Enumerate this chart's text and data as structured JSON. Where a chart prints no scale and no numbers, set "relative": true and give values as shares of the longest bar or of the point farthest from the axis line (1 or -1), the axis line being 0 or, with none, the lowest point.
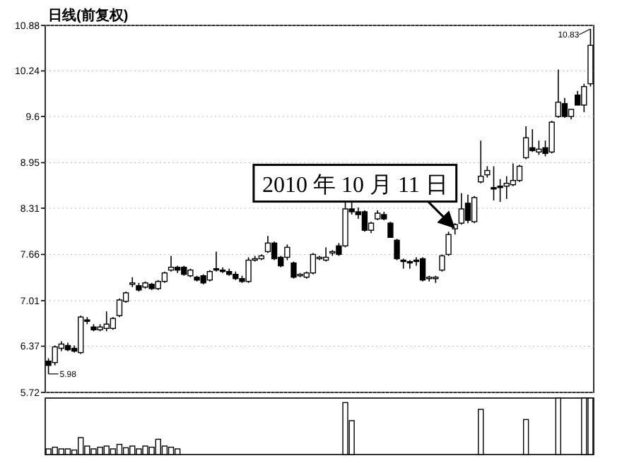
{
  "chart_data": [
    {
      "type": "candlestick",
      "title": "日线(前复权)",
      "categories": [
        null,
        null,
        null,
        null,
        null,
        null,
        null,
        null,
        null,
        null,
        null,
        null,
        null,
        null,
        null,
        null,
        null,
        null,
        null,
        null,
        null,
        null,
        null,
        null,
        null,
        null,
        null,
        null,
        null,
        null,
        null,
        null,
        null,
        null,
        null,
        null,
        null,
        null,
        null,
        null,
        null,
        null,
        null,
        null,
        null,
        null,
        null,
        null,
        null,
        null,
        null,
        null,
        null,
        null,
        null,
        null,
        null,
        null,
        null,
        null,
        null,
        null,
        null,
        null,
        null,
        null,
        null,
        null,
        null,
        null,
        null,
        null,
        null,
        null,
        null,
        null,
        null,
        null,
        null,
        null,
        null,
        null,
        null,
        null,
        null
      ],
      "ohlc": [
        [
          6.16,
          6.2,
          5.98,
          6.1
        ],
        [
          6.14,
          6.38,
          6.1,
          6.36
        ],
        [
          6.34,
          6.44,
          6.3,
          6.4
        ],
        [
          6.38,
          6.42,
          6.3,
          6.32
        ],
        [
          6.34,
          6.38,
          6.28,
          6.3
        ],
        [
          6.28,
          6.8,
          6.26,
          6.78
        ],
        [
          6.74,
          6.78,
          6.68,
          6.72
        ],
        [
          6.64,
          6.68,
          6.58,
          6.6
        ],
        [
          6.6,
          6.68,
          6.58,
          6.64
        ],
        [
          6.62,
          6.86,
          6.58,
          6.68
        ],
        [
          6.62,
          6.78,
          6.6,
          6.76
        ],
        [
          6.8,
          7.04,
          6.78,
          7.02
        ],
        [
          7.0,
          7.14,
          6.98,
          7.12
        ],
        [
          7.24,
          7.34,
          7.2,
          7.26
        ],
        [
          7.22,
          7.26,
          7.14,
          7.16
        ],
        [
          7.2,
          7.28,
          7.18,
          7.26
        ],
        [
          7.24,
          7.26,
          7.16,
          7.18
        ],
        [
          7.18,
          7.3,
          7.16,
          7.28
        ],
        [
          7.28,
          7.42,
          7.26,
          7.4
        ],
        [
          7.44,
          7.64,
          7.42,
          7.48
        ],
        [
          7.48,
          7.5,
          7.4,
          7.44
        ],
        [
          7.48,
          7.5,
          7.36,
          7.38
        ],
        [
          7.36,
          7.46,
          7.34,
          7.44
        ],
        [
          7.34,
          7.36,
          7.28,
          7.3
        ],
        [
          7.36,
          7.38,
          7.24,
          7.26
        ],
        [
          7.3,
          7.44,
          7.28,
          7.42
        ],
        [
          7.46,
          7.7,
          7.42,
          7.44
        ],
        [
          7.44,
          7.48,
          7.4,
          7.42
        ],
        [
          7.42,
          7.46,
          7.36,
          7.38
        ],
        [
          7.38,
          7.42,
          7.3,
          7.32
        ],
        [
          7.32,
          7.36,
          7.26,
          7.28
        ],
        [
          7.28,
          7.62,
          7.26,
          7.58
        ],
        [
          7.58,
          7.64,
          7.56,
          7.6
        ],
        [
          7.6,
          7.66,
          7.58,
          7.64
        ],
        [
          7.7,
          7.92,
          7.68,
          7.82
        ],
        [
          7.82,
          7.84,
          7.58,
          7.6
        ],
        [
          7.62,
          7.64,
          7.48,
          7.5
        ],
        [
          7.62,
          7.8,
          7.58,
          7.76
        ],
        [
          7.54,
          7.56,
          7.32,
          7.34
        ],
        [
          7.36,
          7.4,
          7.34,
          7.38
        ],
        [
          7.34,
          7.42,
          7.32,
          7.4
        ],
        [
          7.4,
          7.68,
          7.38,
          7.66
        ],
        [
          7.6,
          7.64,
          7.58,
          7.62
        ],
        [
          7.58,
          7.76,
          7.56,
          7.62
        ],
        [
          7.68,
          7.72,
          7.64,
          7.7
        ],
        [
          7.78,
          7.82,
          7.64,
          7.66
        ],
        [
          7.78,
          8.4,
          7.76,
          8.3
        ],
        [
          8.3,
          8.4,
          8.22,
          8.26
        ],
        [
          8.26,
          8.32,
          8.16,
          8.22
        ],
        [
          8.26,
          8.28,
          7.98,
          8.0
        ],
        [
          8.0,
          8.12,
          7.96,
          8.1
        ],
        [
          8.16,
          8.28,
          8.14,
          8.24
        ],
        [
          8.22,
          8.26,
          8.14,
          8.16
        ],
        [
          8.1,
          8.12,
          7.9,
          7.9
        ],
        [
          7.86,
          7.88,
          7.58,
          7.6
        ],
        [
          7.58,
          7.6,
          7.46,
          7.56
        ],
        [
          7.56,
          7.58,
          7.46,
          7.54
        ],
        [
          7.58,
          7.62,
          7.5,
          7.56
        ],
        [
          7.6,
          7.62,
          7.28,
          7.3
        ],
        [
          7.32,
          7.36,
          7.28,
          7.34
        ],
        [
          7.32,
          7.36,
          7.26,
          7.34
        ],
        [
          7.44,
          7.66,
          7.42,
          7.64
        ],
        [
          7.66,
          7.98,
          7.64,
          7.94
        ],
        [
          8.02,
          8.1,
          7.94,
          8.08
        ],
        [
          8.1,
          8.52,
          8.08,
          8.3
        ],
        [
          8.38,
          8.5,
          8.1,
          8.14
        ],
        [
          8.12,
          8.48,
          8.1,
          8.46
        ],
        [
          8.68,
          9.26,
          8.66,
          8.76
        ],
        [
          8.78,
          8.9,
          8.74,
          8.84
        ],
        [
          8.6,
          8.9,
          8.42,
          8.58
        ],
        [
          8.62,
          8.72,
          8.4,
          8.6
        ],
        [
          8.62,
          8.76,
          8.44,
          8.66
        ],
        [
          8.64,
          8.94,
          8.62,
          8.7
        ],
        [
          8.7,
          8.92,
          8.68,
          8.9
        ],
        [
          9.02,
          9.46,
          9.0,
          9.3
        ],
        [
          9.16,
          9.42,
          9.1,
          9.12
        ],
        [
          9.1,
          9.26,
          9.06,
          9.14
        ],
        [
          9.16,
          9.26,
          9.04,
          9.08
        ],
        [
          9.1,
          9.54,
          9.08,
          9.52
        ],
        [
          9.6,
          10.26,
          9.58,
          9.8
        ],
        [
          9.78,
          9.86,
          9.58,
          9.6
        ],
        [
          9.6,
          9.7,
          9.56,
          9.7
        ],
        [
          9.9,
          9.96,
          9.76,
          9.76
        ],
        [
          9.76,
          10.06,
          9.66,
          10.02
        ],
        [
          10.06,
          10.83,
          10.02,
          10.6
        ]
      ],
      "ylim": [
        5.72,
        10.88
      ],
      "yticks": [
        5.72,
        6.37,
        7.01,
        7.66,
        8.31,
        8.95,
        9.6,
        10.24,
        10.88
      ],
      "grid": "y",
      "tick_labels": "y",
      "annotations": [
        "2010 年 10 月 11 日",
        "10.83",
        "5.98"
      ]
    },
    {
      "type": "bar",
      "relative": true,
      "categories": [
        null,
        null,
        null,
        null,
        null,
        null,
        null,
        null,
        null,
        null,
        null,
        null,
        null,
        null,
        null,
        null,
        null,
        null,
        null,
        null,
        null,
        null,
        null,
        null,
        null,
        null,
        null,
        null,
        null,
        null,
        null,
        null,
        null,
        null,
        null,
        null,
        null,
        null,
        null,
        null,
        null,
        null,
        null,
        null,
        null,
        null,
        null,
        null,
        null,
        null,
        null,
        null,
        null,
        null,
        null,
        null,
        null,
        null,
        null,
        null,
        null,
        null,
        null,
        null,
        null,
        null,
        null,
        null,
        null,
        null,
        null,
        null,
        null,
        null,
        null,
        null,
        null,
        null,
        null,
        null,
        null,
        null,
        null,
        null,
        null
      ],
      "values": [
        0.1,
        0.13,
        0.1,
        0.1,
        0.08,
        0.3,
        0.15,
        0.1,
        0.13,
        0.15,
        0.1,
        0.18,
        0.12,
        0.15,
        0.1,
        0.15,
        0.13,
        0.27,
        0.15,
        0.13,
        0.1,
        null,
        null,
        null,
        null,
        null,
        null,
        null,
        null,
        null,
        null,
        null,
        null,
        null,
        null,
        null,
        null,
        null,
        null,
        null,
        null,
        null,
        null,
        null,
        null,
        null,
        0.92,
        0.6,
        null,
        null,
        null,
        null,
        null,
        null,
        null,
        null,
        null,
        null,
        null,
        null,
        null,
        null,
        null,
        null,
        null,
        null,
        null,
        0.8,
        null,
        null,
        null,
        null,
        null,
        null,
        0.62,
        null,
        null,
        null,
        null,
        1,
        null,
        null,
        null,
        1,
        1
      ]
    }
  ]
}
